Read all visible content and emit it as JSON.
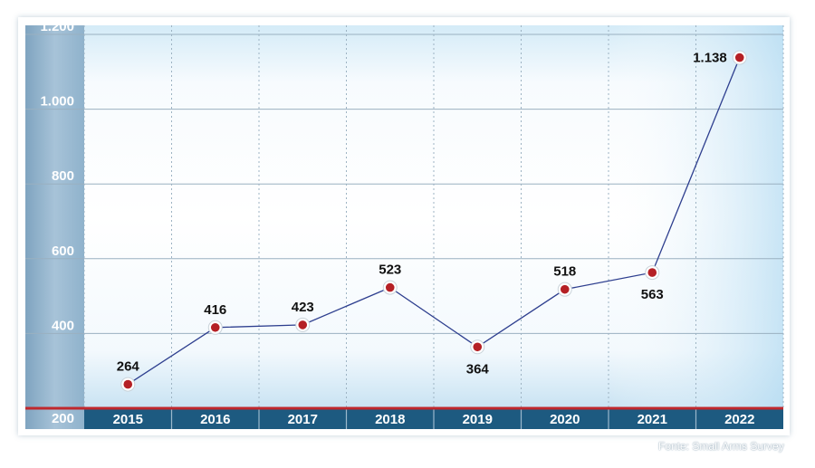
{
  "chart_data": {
    "type": "line",
    "categories": [
      "2015",
      "2016",
      "2017",
      "2018",
      "2019",
      "2020",
      "2021",
      "2022"
    ],
    "values": [
      264,
      416,
      423,
      523,
      364,
      518,
      563,
      1138
    ],
    "data_labels": [
      "264",
      "416",
      "423",
      "523",
      "364",
      "518",
      "563",
      "1.138"
    ],
    "y_ticks": [
      200,
      400,
      600,
      800,
      1000,
      1200
    ],
    "y_tick_labels": [
      "200",
      "400",
      "600",
      "800",
      "1.000",
      "1.200"
    ],
    "ylim": [
      200,
      1200
    ],
    "grid": true,
    "colors": {
      "line": "#2e3f8f",
      "marker": "#b52025",
      "axis_bar": "#1d5a80",
      "baseline": "#c0282d",
      "y_strip": "#8fb2cc"
    }
  },
  "source": "Fonte: Small Arms Survey"
}
